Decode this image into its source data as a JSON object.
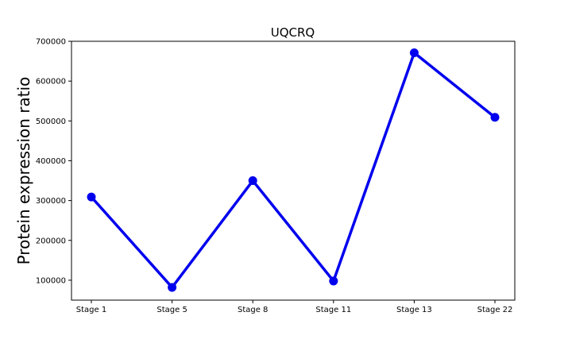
{
  "chart_data": {
    "type": "line",
    "title": "UQCRQ",
    "xlabel": "",
    "ylabel": "Protein expression ratio",
    "categories": [
      "Stage 1",
      "Stage 5",
      "Stage 8",
      "Stage 11",
      "Stage 13",
      "Stage 22"
    ],
    "series": [
      {
        "values": [
          309000,
          82000,
          350000,
          98000,
          671000,
          509000
        ],
        "color": "#0000ee",
        "marker": "circle"
      }
    ],
    "ylim": [
      50000,
      700000
    ],
    "yticks": [
      100000,
      200000,
      300000,
      400000,
      500000,
      600000,
      700000
    ],
    "ytick_labels": [
      "100000",
      "200000",
      "300000",
      "400000",
      "500000",
      "600000",
      "700000"
    ],
    "grid": false,
    "legend": "none"
  }
}
